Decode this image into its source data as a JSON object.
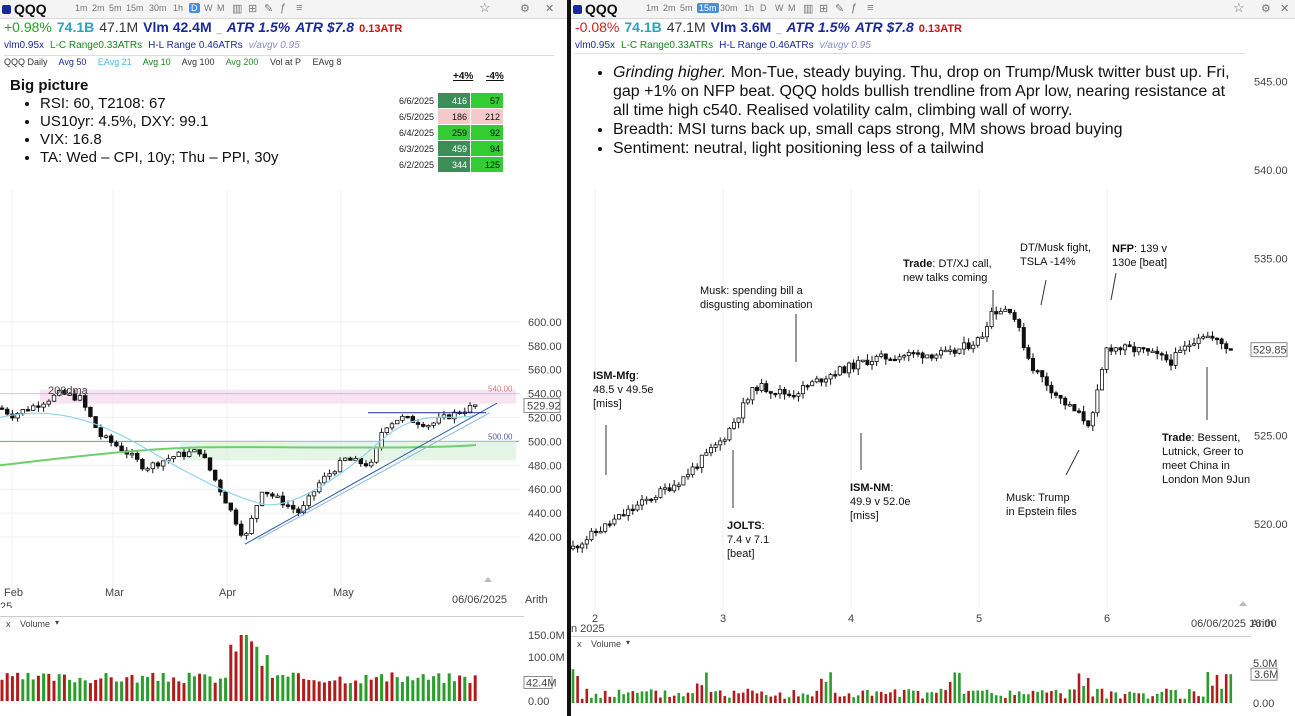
{
  "left": {
    "symbol": "QQQ",
    "timeframes": [
      "1m",
      "2m",
      "5m",
      "15m",
      "30m",
      "1h",
      "D",
      "W",
      "M"
    ],
    "active_timeframe": "D",
    "stats": {
      "change": "+0.98%",
      "market_cap": "74.1B",
      "volume": "47.1M",
      "vlm": "Vlm 42.4M",
      "atr_pct": "ATR 1.5%",
      "atr_abs": "ATR $7.8",
      "atr_ratio": "0.13ATR"
    },
    "subline": {
      "vlm_ratio": "vlm0.95x",
      "lc_range": "L-C Range0.33ATRs",
      "hl_range": "H-L Range 0.46ATRs",
      "avgv": "v/avgv 0.95"
    },
    "indicators": [
      "QQQ Daily",
      "Avg 50",
      "EAvg 21",
      "Avg 10",
      "Avg 100",
      "Avg 200",
      "Vol at P",
      "EAvg 8"
    ],
    "big_picture": {
      "title": "Big picture",
      "bullets": [
        "RSI: 60, T2108: 67",
        "US10yr: 4.5%, DXY: 99.1",
        "VIX: 16.8",
        "TA: Wed – CPI, 10y; Thu – PPI, 30y"
      ]
    },
    "breadth_table": {
      "headers": [
        "+4%",
        "-4%"
      ],
      "rows": [
        {
          "date": "6/6/2025",
          "up": "416",
          "down": "57"
        },
        {
          "date": "6/5/2025",
          "up": "186",
          "down": "212"
        },
        {
          "date": "6/4/2025",
          "up": "259",
          "down": "92"
        },
        {
          "date": "6/3/2025",
          "up": "459",
          "down": "94"
        },
        {
          "date": "6/2/2025",
          "up": "344",
          "down": "125"
        }
      ]
    },
    "ma_label": "200dma",
    "level_upper": "540.00",
    "level_lower": "500.00",
    "price_tag": "529.92",
    "y_ticks": [
      "600.00",
      "580.00",
      "560.00",
      "540.00",
      "520.00",
      "500.00",
      "480.00",
      "460.00",
      "440.00",
      "420.00"
    ],
    "x_ticks": [
      "Feb",
      "Mar",
      "Apr",
      "May"
    ],
    "year_label": "25",
    "date_stamp": "06/06/2025",
    "scale_label": "Arith",
    "volume_panel": {
      "title": "Volume",
      "ticks": [
        "150.0M",
        "100.0M",
        "0.00"
      ],
      "tag": "42.4M"
    }
  },
  "right": {
    "symbol": "QQQ",
    "timeframes": [
      "1m",
      "2m",
      "5m",
      "15m",
      "30m",
      "1h",
      "D",
      "W",
      "M"
    ],
    "active_timeframe": "15m",
    "stats": {
      "change": "-0.08%",
      "market_cap": "74.1B",
      "volume": "47.1M",
      "vlm": "Vlm 3.6M",
      "atr_pct": "ATR 1.5%",
      "atr_abs": "ATR $7.8",
      "atr_ratio": "0.13ATR"
    },
    "subline": {
      "vlm_ratio": "vlm0.95x",
      "lc_range": "L-C Range0.33ATRs",
      "hl_range": "H-L Range 0.46ATRs",
      "avgv": "v/avgv 0.95"
    },
    "commentary": [
      {
        "lead": "Grinding higher.",
        "text": " Mon-Tue, steady buying.  Thu, drop on Trump/Musk twitter bust up.  Fri, gap +1% on NFP beat.  QQQ holds bullish trendline from Apr low, nearing resistance at all time high c540.  Realised volatility calm, climbing wall of worry."
      },
      {
        "lead": "",
        "text": "Breadth: MSI turns back up, small caps strong, MM shows broad buying"
      },
      {
        "lead": "",
        "text": "Sentiment: neutral, light positioning less of a tailwind"
      }
    ],
    "annotations": {
      "ism_mfg": {
        "title": "ISM-Mfg",
        "lines": [
          "48.5 v 49.5e",
          "[miss]"
        ]
      },
      "jolts": {
        "title": "JOLTS",
        "lines": [
          "7.4 v 7.1",
          "[beat]"
        ]
      },
      "musk_bill": {
        "lines": [
          "Musk: spending bill a",
          "disgusting abomination"
        ]
      },
      "ism_nm": {
        "title": "ISM-NM",
        "lines": [
          "49.9 v 52.0e",
          "[miss]"
        ]
      },
      "trade_call": {
        "title": "Trade",
        "lines": [
          ": DT/XJ call,",
          "new talks coming"
        ]
      },
      "dt_musk": {
        "lines": [
          "DT/Musk fight,",
          "TSLA -14%"
        ]
      },
      "musk_epstein": {
        "lines": [
          "Musk: Trump",
          "in Epstein files"
        ]
      },
      "nfp": {
        "title": "NFP",
        "lines": [
          ": 139 v",
          "130e [beat]"
        ]
      },
      "trade_china": {
        "title": "Trade",
        "lines": [
          ": Bessent,",
          "Lutnick, Greer to",
          "meet China in",
          "London Mon 9Jun"
        ]
      }
    },
    "price_tag": "529.85",
    "y_ticks": [
      "545.00",
      "540.00",
      "535.00",
      "530.00",
      "525.00",
      "520.00"
    ],
    "x_ticks": [
      "2",
      "3",
      "4",
      "5",
      "6"
    ],
    "year_label": "n 2025",
    "date_stamp": "06/06/2025 16:00",
    "scale_label": "Arith",
    "volume_panel": {
      "title": "Volume",
      "ticks": [
        "5.0M",
        "0.00"
      ],
      "tag": "3.6M"
    }
  },
  "colors": {
    "up": "#1a8c1a",
    "down": "#111111",
    "vol_up": "#2a9d2a",
    "vol_down": "#b01c1c",
    "ma200": "#6fcf6f",
    "ema21": "#8fd3f0",
    "trend": "#2a5fa8"
  }
}
